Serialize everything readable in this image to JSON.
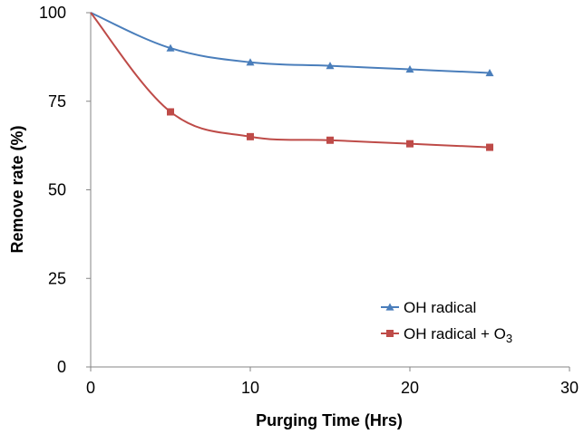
{
  "chart_data": {
    "type": "line",
    "title": "",
    "xlabel": "Purging Time (Hrs)",
    "ylabel": "Remove rate (%)",
    "xlim": [
      0,
      30
    ],
    "ylim": [
      0,
      100
    ],
    "xticks": [
      0,
      10,
      20,
      30
    ],
    "yticks": [
      0,
      25,
      50,
      75,
      100
    ],
    "grid": false,
    "legend_position": "bottom-right",
    "series": [
      {
        "name": "OH radical",
        "color": "#4a7ebb",
        "marker": "triangle",
        "x": [
          0,
          5,
          10,
          15,
          20,
          25
        ],
        "y": [
          100,
          90,
          86,
          85,
          84,
          83
        ]
      },
      {
        "name": "OH radical + O",
        "name_subscript": "3",
        "color": "#be4b48",
        "marker": "square",
        "x": [
          0,
          5,
          10,
          15,
          20,
          25
        ],
        "y": [
          100,
          72,
          65,
          64,
          63,
          62
        ]
      }
    ]
  }
}
